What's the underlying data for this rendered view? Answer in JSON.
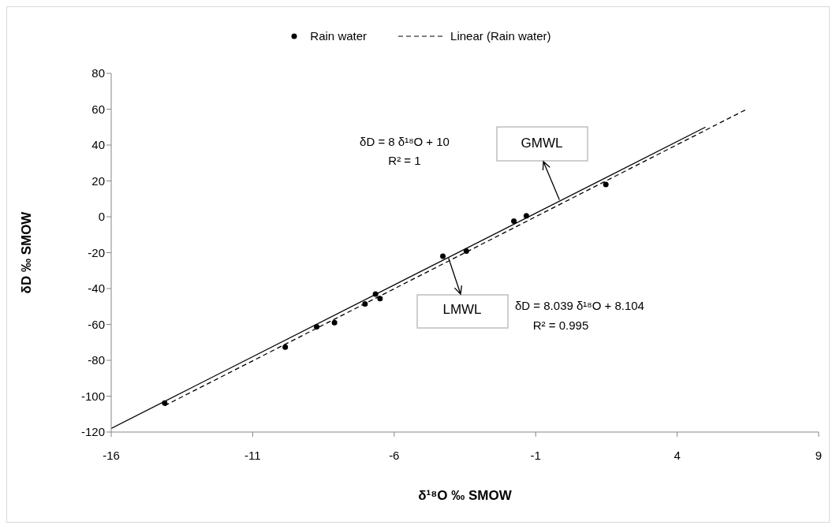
{
  "chart_data": {
    "type": "scatter",
    "xlabel": "δ¹⁸O  ‰ SMOW",
    "ylabel": "δD  ‰ SMOW",
    "xlim": [
      -16,
      9
    ],
    "xticks": [
      -16,
      -11,
      -6,
      -1,
      4,
      9
    ],
    "ylim": [
      -120,
      80
    ],
    "yticks": [
      -120,
      -100,
      -80,
      -60,
      -40,
      -20,
      0,
      20,
      40,
      60,
      80
    ],
    "grid": false,
    "legend": "top",
    "series": [
      {
        "name": "Rain water",
        "type": "scatter",
        "marker": "circle",
        "color": "#000000",
        "x": [
          -14.11,
          -9.85,
          -8.74,
          -8.11,
          -7.03,
          -6.66,
          -6.5,
          -4.28,
          -3.45,
          -1.77,
          -1.33,
          1.48
        ],
        "values": [
          -103.9,
          -72.6,
          -61.3,
          -59,
          -48.6,
          -43.1,
          -45.6,
          -22,
          -19.1,
          -2.4,
          0.5,
          18
        ]
      },
      {
        "name": "Linear (Rain water)",
        "type": "line",
        "line_style": "dashed",
        "color": "#000000",
        "x": [
          -14.11,
          6.46
        ],
        "values": [
          -105.3,
          60
        ]
      },
      {
        "type": "line",
        "line_style": "solid",
        "color": "#000000",
        "x": [
          -16,
          5
        ],
        "values": [
          -118,
          50
        ]
      }
    ],
    "annotations": [
      "δD = 8 δ¹⁸O + 10",
      "R² = 1",
      {
        "text": "GMWL",
        "x": -0.16,
        "y": 9.5
      },
      {
        "text": "LMWL",
        "x": -4.08,
        "y": -23
      },
      "δD = 8.039 δ¹⁸O + 8.104",
      "R² = 0.995"
    ]
  }
}
